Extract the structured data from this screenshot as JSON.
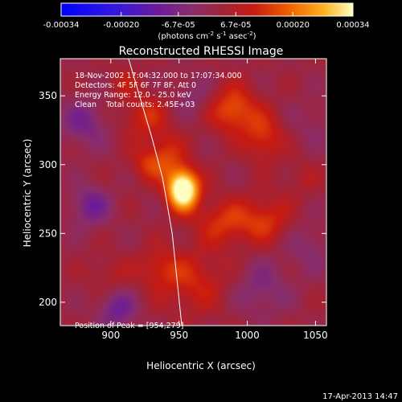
{
  "chart_data": {
    "type": "heatmap",
    "title": "Reconstructed RHESSI Image",
    "xlabel": "Heliocentric X (arcsec)",
    "ylabel": "Heliocentric Y (arcsec)",
    "xlim": [
      863,
      1058
    ],
    "ylim": [
      183,
      377
    ],
    "x_ticks": [
      900,
      950,
      1000,
      1050
    ],
    "y_ticks": [
      200,
      250,
      300,
      350
    ],
    "grid": false,
    "colorbar": {
      "min": -0.00034,
      "max": 0.00034,
      "tick_values": [
        -0.00034,
        -0.0002,
        -6.7e-05,
        6.7e-05,
        0.0002,
        0.00034
      ],
      "tick_labels": [
        "-0.00034",
        "-0.00020",
        "-6.7e-05",
        "6.7e-05",
        "0.00020",
        "0.00034"
      ],
      "unit_text": "(photons cm",
      "unit_sup1": "-2",
      "unit_mid": " s",
      "unit_sup2": "-1",
      "unit_end": " asec",
      "unit_sup3": "-2",
      "unit_close": ")"
    },
    "annotations": [
      "18-Nov-2002 17:04:32.000 to 17:07:34.000",
      "Detectors: 4F 5F 6F 7F 8F, Att 0",
      "Energy Range: 12.0 - 25.0 keV",
      "Clean    Total counts: 2.45E+03"
    ],
    "peak_label": "Position of Peak = [954,279]",
    "peak": {
      "x": 954,
      "y": 279,
      "value": 0.00034
    },
    "sources": [
      {
        "x": 953,
        "y": 282,
        "sx": 8,
        "sy": 10,
        "amp": 0.00042
      },
      {
        "x": 940,
        "y": 305,
        "sx": 10,
        "sy": 12,
        "amp": 0.00012
      },
      {
        "x": 925,
        "y": 300,
        "sx": 8,
        "sy": 8,
        "amp": 8e-05
      },
      {
        "x": 990,
        "y": 340,
        "sx": 12,
        "sy": 12,
        "amp": 0.00016
      },
      {
        "x": 1012,
        "y": 320,
        "sx": 10,
        "sy": 12,
        "amp": 0.00012
      },
      {
        "x": 925,
        "y": 335,
        "sx": 12,
        "sy": 12,
        "amp": 0.0001
      },
      {
        "x": 910,
        "y": 360,
        "sx": 8,
        "sy": 8,
        "amp": 6e-05
      },
      {
        "x": 985,
        "y": 258,
        "sx": 16,
        "sy": 12,
        "amp": 0.00012
      },
      {
        "x": 1015,
        "y": 260,
        "sx": 12,
        "sy": 12,
        "amp": 0.0001
      },
      {
        "x": 960,
        "y": 215,
        "sx": 18,
        "sy": 16,
        "amp": 0.0001
      },
      {
        "x": 935,
        "y": 225,
        "sx": 10,
        "sy": 10,
        "amp": 8e-05
      },
      {
        "x": 900,
        "y": 220,
        "sx": 12,
        "sy": 10,
        "amp": 5e-05
      },
      {
        "x": 885,
        "y": 270,
        "sx": 10,
        "sy": 10,
        "amp": -0.00012
      },
      {
        "x": 880,
        "y": 330,
        "sx": 12,
        "sy": 12,
        "amp": -0.0001
      },
      {
        "x": 905,
        "y": 195,
        "sx": 10,
        "sy": 10,
        "amp": -0.00012
      },
      {
        "x": 1010,
        "y": 210,
        "sx": 14,
        "sy": 14,
        "amp": -8e-05
      },
      {
        "x": 1045,
        "y": 240,
        "sx": 12,
        "sy": 12,
        "amp": -6e-05
      },
      {
        "x": 1050,
        "y": 330,
        "sx": 12,
        "sy": 12,
        "amp": -4e-05
      },
      {
        "x": 960,
        "y": 350,
        "sx": 10,
        "sy": 10,
        "amp": -6e-05
      },
      {
        "x": 1040,
        "y": 290,
        "sx": 10,
        "sy": 10,
        "amp": 4e-05
      }
    ],
    "limb_curve": [
      [
        913,
        377
      ],
      [
        930,
        320
      ],
      [
        938,
        290
      ],
      [
        945,
        250
      ],
      [
        952,
        183
      ]
    ]
  },
  "footer_date": "17-Apr-2013 14:47"
}
